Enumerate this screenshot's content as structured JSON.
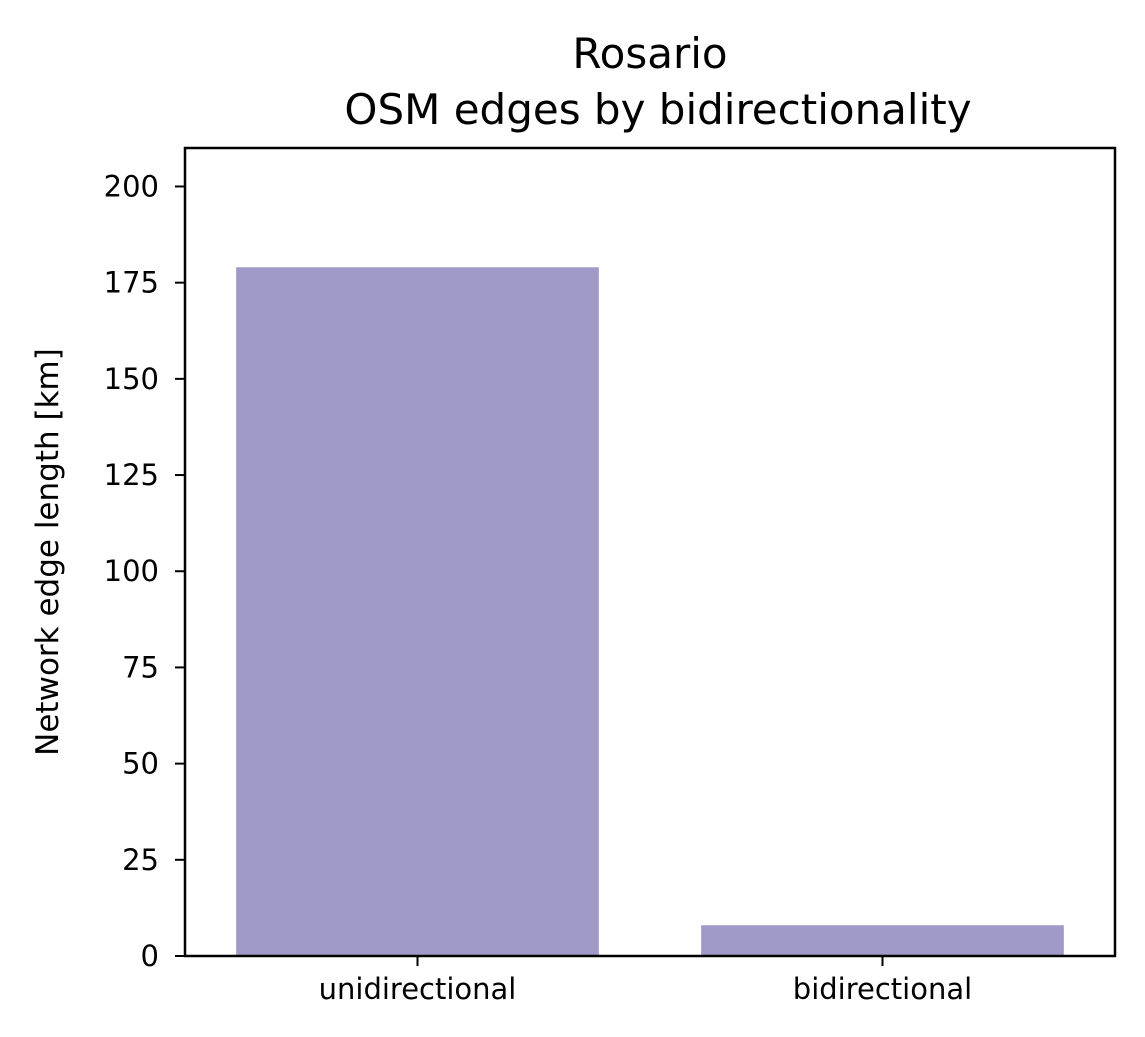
{
  "chart_data": {
    "type": "bar",
    "title": "Rosario",
    "subtitle": "OSM edges by bidirectionality",
    "xlabel": "",
    "ylabel": "Network edge length [km]",
    "categories": [
      "unidirectional",
      "bidirectional"
    ],
    "values": [
      179,
      8
    ],
    "ylim": [
      0,
      210
    ],
    "yticks": [
      0,
      25,
      50,
      75,
      100,
      125,
      150,
      175,
      200
    ],
    "ytick_labels": [
      "0",
      "25",
      "50",
      "75",
      "100",
      "125",
      "150",
      "175",
      "200"
    ],
    "grid": false,
    "legend": false,
    "bar_color": "#a09ac9"
  }
}
